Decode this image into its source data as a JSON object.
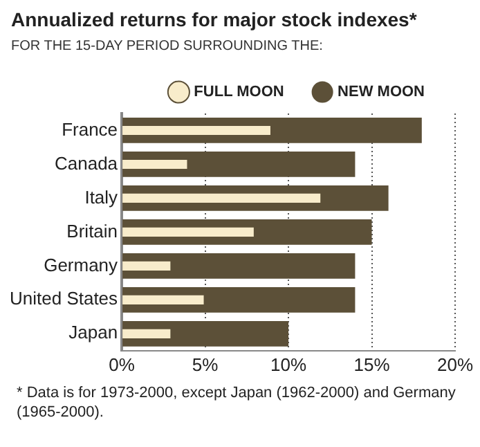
{
  "chart_data": {
    "type": "bar",
    "orientation": "horizontal",
    "title": "Annualized returns for major stock indexes*",
    "subtitle": "FOR THE 15-DAY PERIOD SURROUNDING THE:",
    "categories": [
      "France",
      "Canada",
      "Italy",
      "Britain",
      "Germany",
      "United States",
      "Japan"
    ],
    "series": [
      {
        "name": "FULL MOON",
        "color": "#f8eccb",
        "values": [
          9,
          4,
          12,
          8,
          3,
          5,
          3
        ]
      },
      {
        "name": "NEW MOON",
        "color": "#5c5038",
        "values": [
          18,
          14,
          16,
          15,
          14,
          14,
          10
        ]
      }
    ],
    "xlim": [
      0,
      20
    ],
    "xticks": [
      {
        "value": 0,
        "label": "0%"
      },
      {
        "value": 5,
        "label": "5%"
      },
      {
        "value": 10,
        "label": "10%"
      },
      {
        "value": 15,
        "label": "15%"
      },
      {
        "value": 20,
        "label": "20%"
      }
    ],
    "grid": "x",
    "legend": "top",
    "annotations": [
      "* Data is for 1973-2000, except Japan (1962-2000) and Germany (1965-2000)."
    ]
  }
}
